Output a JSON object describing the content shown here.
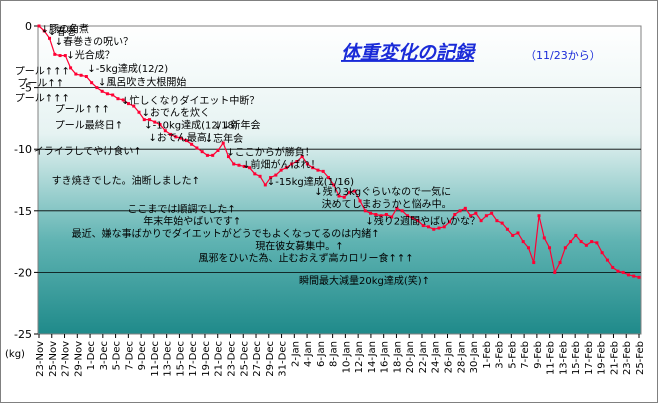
{
  "chart_data": {
    "type": "line",
    "title": "体重変化の記録",
    "subtitle": "（11/23から）",
    "ylabel": "(kg)",
    "xlabel": "",
    "ylim": [
      -25,
      0
    ],
    "yticks": [
      0,
      -5,
      -10,
      -15,
      -20,
      -25
    ],
    "grid": true,
    "legend": "none",
    "colors": {
      "line": "#ff0033",
      "bg_top": "#ffffff",
      "bg_bottom": "#1f8a8a",
      "title": "#1a2bd8",
      "grid": "#000000"
    },
    "x_tick_labels": [
      "23-Nov",
      "25-Nov",
      "27-Nov",
      "29-Nov",
      "1-Dec",
      "3-Dec",
      "5-Dec",
      "7-Dec",
      "9-Dec",
      "11-Dec",
      "13-Dec",
      "15-Dec",
      "17-Dec",
      "19-Dec",
      "21-Dec",
      "23-Dec",
      "25-Dec",
      "27-Dec",
      "29-Dec",
      "31-Dec",
      "2-Jan",
      "4-Jan",
      "6-Jan",
      "8-Jan",
      "10-Jan",
      "12-Jan",
      "14-Jan",
      "16-Jan",
      "18-Jan",
      "20-Jan",
      "22-Jan",
      "24-Jan",
      "26-Jan",
      "28-Jan",
      "30-Jan",
      "1-Feb",
      "3-Feb",
      "5-Feb",
      "7-Feb",
      "9-Feb",
      "11-Feb",
      "13-Feb",
      "15-Feb",
      "17-Feb",
      "19-Feb",
      "21-Feb",
      "23-Feb",
      "25-Feb"
    ],
    "series": [
      {
        "values": [
          0,
          -0.4,
          -1.0,
          -2.3,
          -2.4,
          -2.4,
          -3.4,
          -3.9,
          -4.0,
          -4.1,
          -4.6,
          -5.0,
          -5.3,
          -5.5,
          -5.6,
          -5.9,
          -6.0,
          -6.3,
          -6.5,
          -7.0,
          -7.6,
          -7.6,
          -7.8,
          -8.0,
          -8.5,
          -8.8,
          -9.0,
          -9.1,
          -9.3,
          -9.6,
          -9.9,
          -10.2,
          -10.5,
          -10.5,
          -10.1,
          -9.5,
          -10.6,
          -11.2,
          -11.3,
          -11.4,
          -11.5,
          -12.0,
          -12.2,
          -12.9,
          -12.3,
          -12.1,
          -11.7,
          -11.5,
          -11.2,
          -11.0,
          -10.6,
          -11.2,
          -11.5,
          -11.7,
          -11.8,
          -12.3,
          -12.9,
          -13.8,
          -13.9,
          -13.5,
          -13.4,
          -14.2,
          -15.0,
          -15.2,
          -15.3,
          -15.4,
          -15.3,
          -15.5,
          -14.8,
          -15.0,
          -15.4,
          -15.6,
          -15.8,
          -16.2,
          -16.3,
          -16.5,
          -16.4,
          -16.3,
          -15.9,
          -15.3,
          -15.0,
          -14.8,
          -15.4,
          -15.2,
          -15.8,
          -15.4,
          -15.2,
          -15.8,
          -16.0,
          -16.5,
          -17.0,
          -16.8,
          -17.5,
          -18.0,
          -19.2,
          -15.4,
          -17.2,
          -18.0,
          -20.0,
          -19.2,
          -18.0,
          -17.5,
          -17.0,
          -17.5,
          -17.8,
          -17.5,
          -17.6,
          -18.4,
          -19.0,
          -19.6,
          -19.9,
          -20.0,
          -20.2,
          -20.3,
          -20.4
        ]
      }
    ],
    "annotations": [
      {
        "text": "↓豚の角煮",
        "x": 0.3,
        "y": -0.2
      },
      {
        "text": "↓春巻",
        "x": 1.7,
        "y": -0.4
      },
      {
        "text": "↓春巻きの呪い？",
        "x": 3.0,
        "y": -1.2
      },
      {
        "text": "↓光合成？",
        "x": 5.2,
        "y": -2.3
      },
      {
        "text": "↓-5kg達成(12/2)",
        "x": 9.2,
        "y": -3.4
      },
      {
        "text": "↓風呂吹き大根開始",
        "x": 11.2,
        "y": -4.5
      },
      {
        "text": "プール↑↑↑",
        "x": -4.6,
        "y": -3.6
      },
      {
        "text": "プール↑↑",
        "x": -4.1,
        "y": -4.6
      },
      {
        "text": "プール↑↑↑",
        "x": -4.6,
        "y": -5.8
      },
      {
        "text": "プール↑↑↑",
        "x": 3.0,
        "y": -6.7
      },
      {
        "text": "プール最終日↑",
        "x": 3.0,
        "y": -8.0
      },
      {
        "text": "↓忙しくなりダイエット中断？",
        "x": 15.6,
        "y": -6.0
      },
      {
        "text": "↓おでんを炊く",
        "x": 19.5,
        "y": -7.0
      },
      {
        "text": "↓-10kg達成(12/18)",
        "x": 20.0,
        "y": -8.0
      },
      {
        "text": "↓おでん最高！",
        "x": 20.8,
        "y": -9.0
      },
      {
        "text": "↓↓新年会",
        "x": 33.2,
        "y": -8.0
      },
      {
        "text": "↓忘年会",
        "x": 31.5,
        "y": -9.1
      },
      {
        "text": "イライラしてやけ食い↑",
        "x": -1.0,
        "y": -10.1
      },
      {
        "text": "↓ここからが勝負！",
        "x": 35.6,
        "y": -10.2
      },
      {
        "text": "↓前畑がんばれ！",
        "x": 38.6,
        "y": -11.2
      },
      {
        "text": "すき焼きでした。油断しました↑",
        "x": 2.4,
        "y": -12.5
      },
      {
        "text": "↓-15kg達成(1/16)",
        "x": 43.3,
        "y": -12.6
      },
      {
        "text": "↓残り3kgぐらいなので一気に",
        "x": 52.3,
        "y": -13.4
      },
      {
        "text": "決めてしまおうかと悩み中。",
        "x": 53.7,
        "y": -14.4
      },
      {
        "text": "ここまでは順調でした↑",
        "x": 16.8,
        "y": -14.8
      },
      {
        "text": "年末年始やばいです↑",
        "x": 19.8,
        "y": -15.8
      },
      {
        "text": "↓残り2週間やばいかな？",
        "x": 62.0,
        "y": -15.8
      },
      {
        "text": "最近、嫌な事ばかりでダイエットがどうでもよくなってるのは内緒↑",
        "x": 6.2,
        "y": -16.8
      },
      {
        "text": "現在彼女募集中。↑",
        "x": 41.1,
        "y": -17.8
      },
      {
        "text": "風邪をひいた為、止むおえず高カロリー食↑↑↑",
        "x": 30.3,
        "y": -18.8
      },
      {
        "text": "瞬間最大減量20kg達成(笑)↑",
        "x": 49.4,
        "y": -20.6
      }
    ]
  }
}
